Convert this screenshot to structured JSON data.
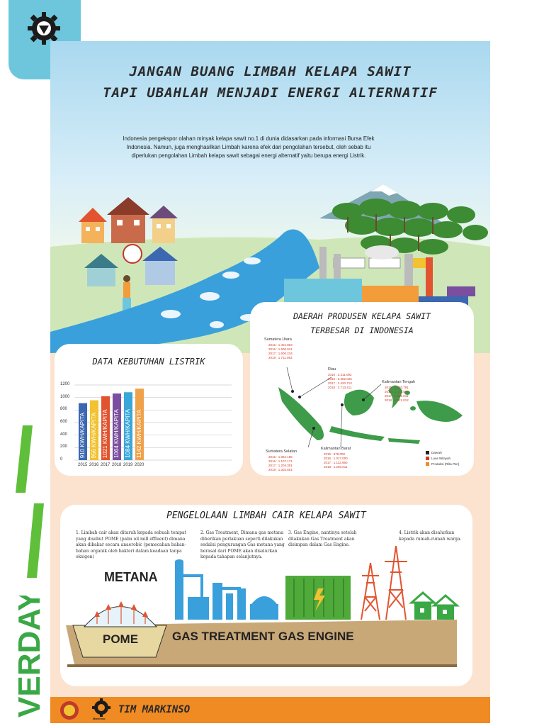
{
  "title": {
    "line1": "JANGAN BUANG LIMBAH KELAPA SAWIT",
    "line2": "TAPI UBAHLAH MENJADI ENERGI ALTERNATIF"
  },
  "intro": "Indonesia pengekspor olahan minyak kelapa sawit no.1 di dunia didasarkan pada informasi Bursa Efek Indonesia. Namun, juga menghasilkan Limbah karena efek dari pengolahan tersebut, oleh sebab itu diperlukan pengolahan Limbah kelapa sawit sebagai energi alternatif yaitu berupa energi Listrik.",
  "side_text": "VERDAY",
  "electricity": {
    "title": "DATA KEBUTUHAN LISTRIK",
    "chart_data": {
      "type": "bar",
      "title": "DATA KEBUTUHAN LISTRIK",
      "categories": [
        "2015",
        "2016",
        "2017",
        "2018",
        "2019",
        "2020"
      ],
      "values": [
        910,
        956,
        1021,
        1064,
        1084,
        1142
      ],
      "bar_labels": [
        "910 KWH/KAPITA",
        "956 KWH/KAPITA",
        "1021 KWH/KAPITA",
        "1064 KWH/KAPITA",
        "1084 KWH/KAPITA",
        "1142 KWH/KAPITA"
      ],
      "colors": [
        "#3c67b1",
        "#f2c230",
        "#e2542f",
        "#7a4f9f",
        "#3aa7d9",
        "#f0a24a"
      ],
      "yticks": [
        "0",
        "200",
        "400",
        "600",
        "800",
        "1000",
        "1200"
      ],
      "ylim": [
        0,
        1200
      ],
      "grid": true
    }
  },
  "map": {
    "title_line1": "DAERAH PRODUSEN KELAPA SAWIT",
    "title_line2": "TERBESAR DI INDONESIA",
    "regions": [
      {
        "name": "Sumatera Utara",
        "values": "2015 : 1.401.803\n2016 : 1.500.911\n2017 : 1.600.234\n2018 : 1.711.053"
      },
      {
        "name": "Riau",
        "values": "2015 : 2.311.092\n2016 : 2.352.025\n2017 : 2.420.713\n2018 : 2.713.411"
      },
      {
        "name": "Kalimantan Tengah",
        "values": "2015 : 1.320.791\n2016 : 1.413.879\n2017 : 1.531.011\n2018 : 1.621.012"
      },
      {
        "name": "Sumatera Selatan",
        "values": "2015 : 1.064.186\n2016 : 1.107.171\n2017 : 1.204.351\n2018 : 1.302.601"
      },
      {
        "name": "Kalimantan Barat",
        "values": "2015 : 979.000\n2016 : 1.017.000\n2017 : 1.112.560\n2018 : 1.200.011"
      }
    ],
    "legend": [
      "Daerah",
      "Luas Wilayah",
      "Produksi (Ribu Ton)"
    ],
    "legend_colors": [
      "#222222",
      "#d23b2a",
      "#f08a22"
    ]
  },
  "process": {
    "title": "PENGELOLAAN LIMBAH CAIR KELAPA SAWIT",
    "steps": [
      "1. Limbah cair akan ditaruh kepada sebuah tempat yang disebut POME (palm oil mill effluent) dimana akan dibakar secara anaerobic (pemecahan bahan-bahan organik oleh bakteri dalam keadaan tanpa oksigen)",
      "2. Gas Treatment, Dimana gas metana diberikan perlakuan seperti dilakukan sedalui pengurangan Gas metana yang berasal dari POME akan disalurkan kepada tahapan selanjutnya.",
      "3. Gas Engine, nantinya setelah dilakukan Gas Treatment akan disimpan dalam Gas Engine.",
      "4. Listrik akan disalurkan kepada rumah-rumah warga."
    ],
    "metana": "METANA",
    "pome": "POME",
    "gas_label": "GAS TREATMENT GAS ENGINE"
  },
  "footer": {
    "team": "TIM MARKINSO",
    "logo_text": "Markinso"
  }
}
